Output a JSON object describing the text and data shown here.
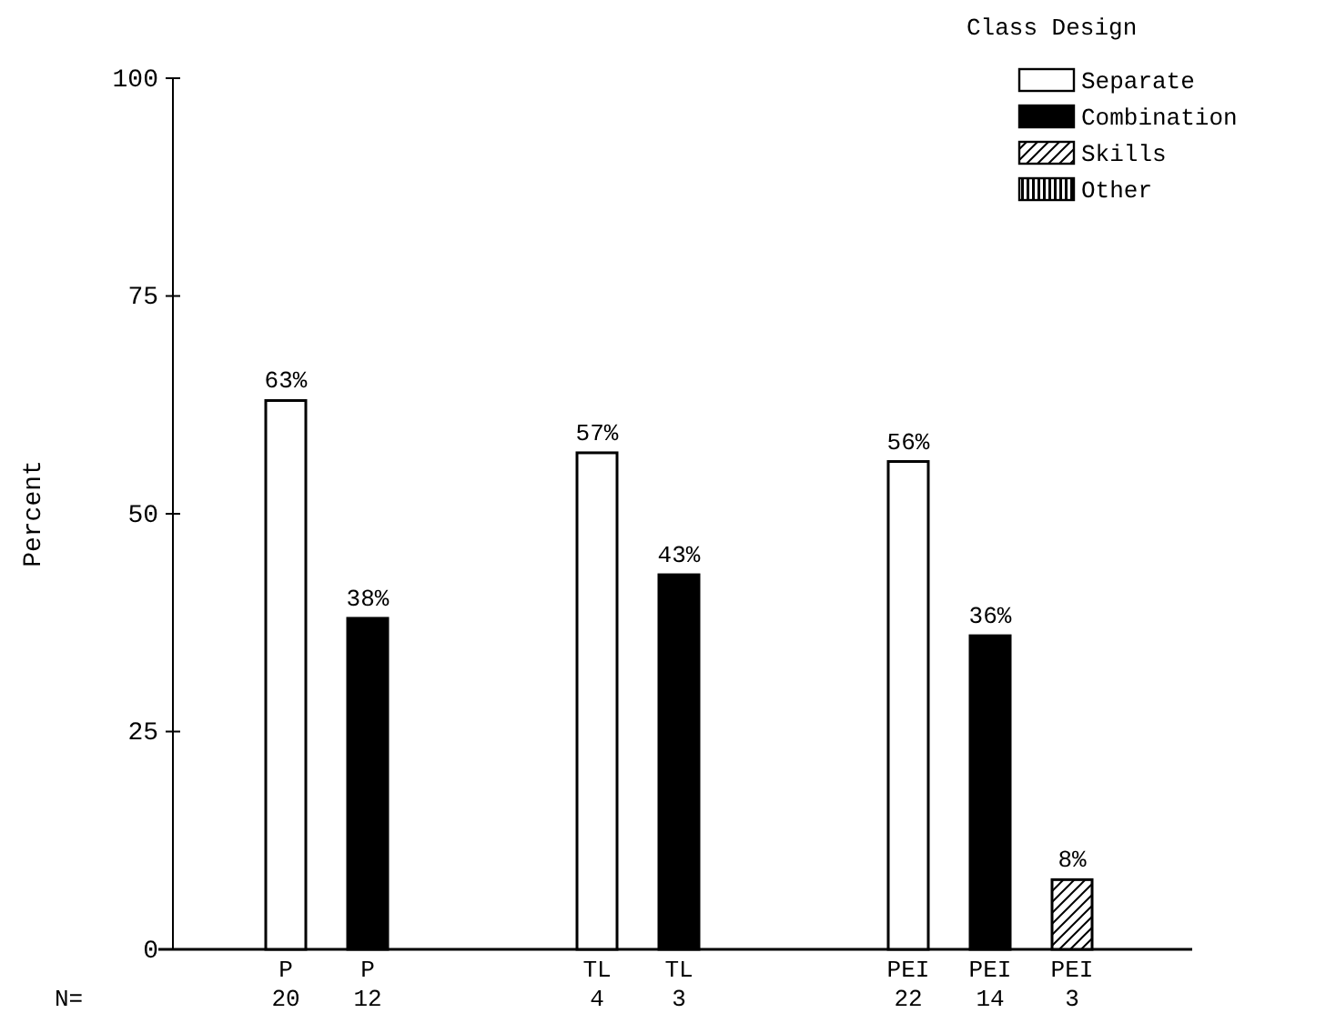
{
  "chart_data": {
    "type": "bar",
    "ylabel": "Percent",
    "legend_title": "Class Design",
    "legend": "top right",
    "categories": [
      "P",
      "TL",
      "PEI"
    ],
    "series": [
      {
        "name": "Separate",
        "color": "#ffffff",
        "values": [
          63,
          57,
          56
        ],
        "value_labels": [
          "63%",
          "57%",
          "56%"
        ]
      },
      {
        "name": "Combination",
        "color": "#000000",
        "values": [
          38,
          43,
          36
        ],
        "value_labels": [
          "38%",
          "43%",
          "36%"
        ]
      },
      {
        "name": "Skills",
        "color": "#000000",
        "values": [
          null,
          null,
          8
        ],
        "value_labels": [
          null,
          null,
          "8%"
        ]
      },
      {
        "name": "Other",
        "color": "#000000",
        "values": [
          null,
          null,
          null
        ]
      }
    ],
    "ylim": [
      0,
      100
    ],
    "yticks": [
      0,
      25,
      50,
      75,
      100
    ],
    "grid": false,
    "annotations": [
      "N=",
      "20",
      "12",
      "4",
      "3",
      "22",
      "14",
      "3"
    ]
  }
}
